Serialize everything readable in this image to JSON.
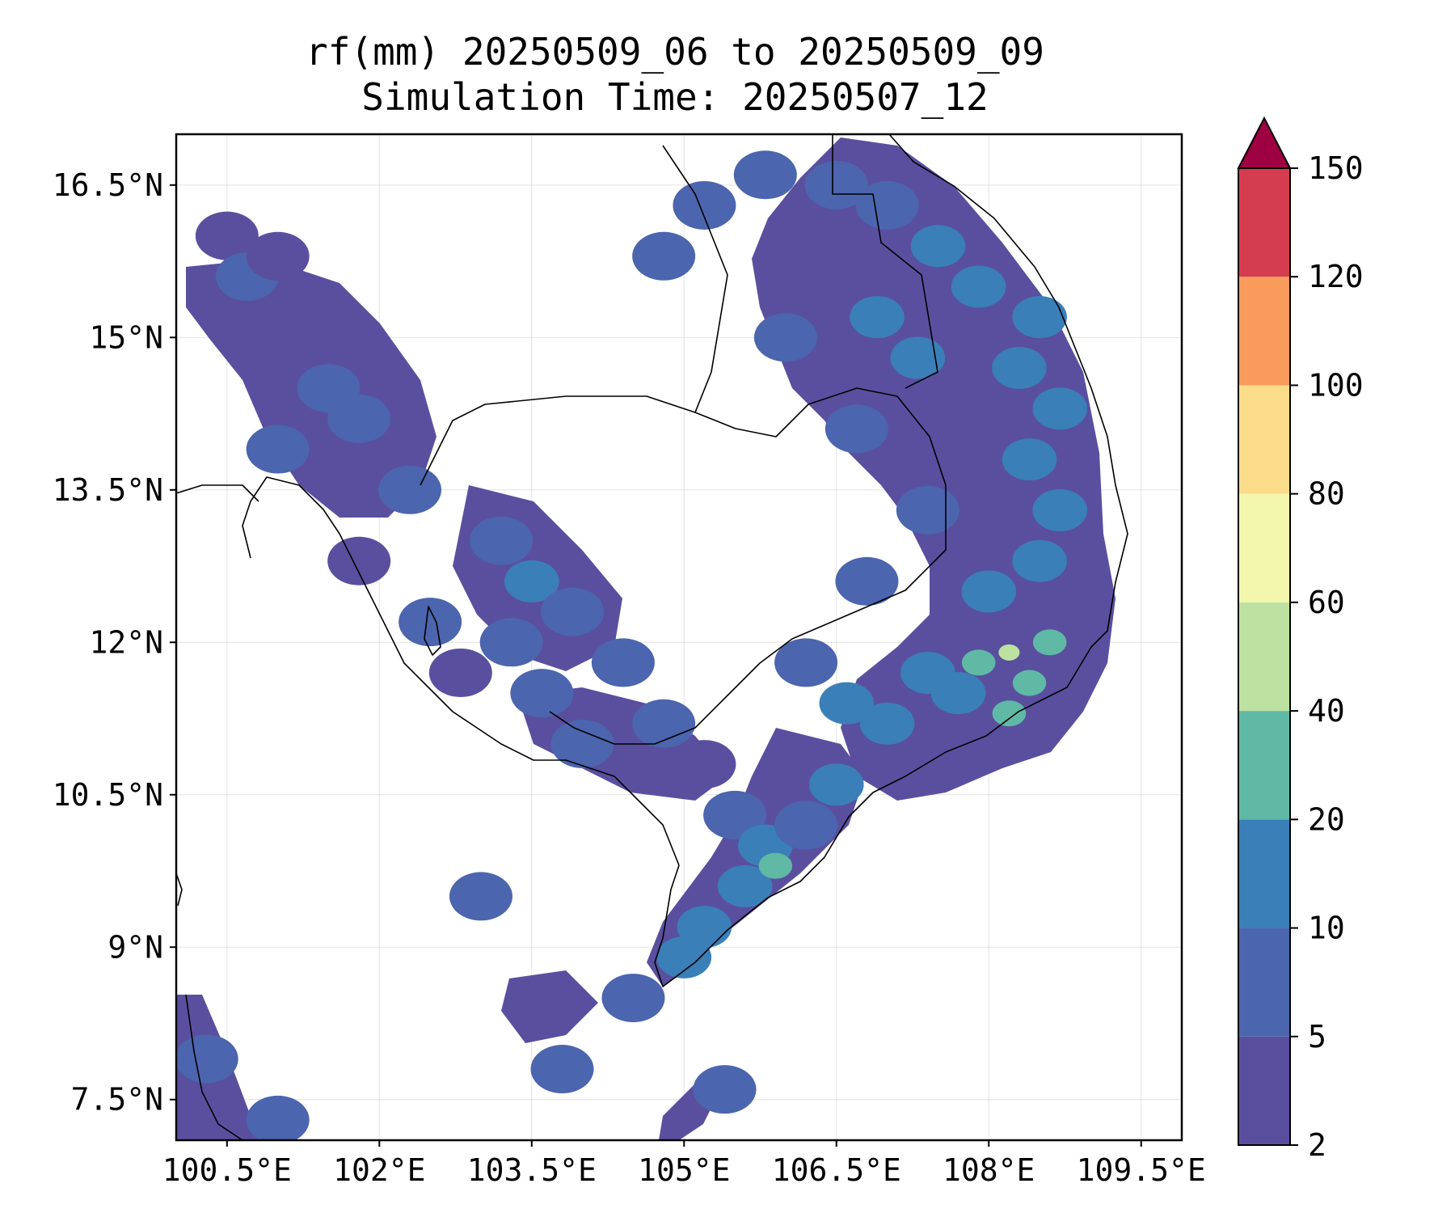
{
  "title": {
    "line1": "rf(mm) 20250509_06 to 20250509_09",
    "line2": "Simulation Time: 20250507_12"
  },
  "map": {
    "lon_range": [
      100.0,
      109.9
    ],
    "lat_range": [
      7.1,
      17.0
    ],
    "x_ticks": [
      {
        "value": 100.5,
        "label": "100.5°E"
      },
      {
        "value": 102.0,
        "label": "102°E"
      },
      {
        "value": 103.5,
        "label": "103.5°E"
      },
      {
        "value": 105.0,
        "label": "105°E"
      },
      {
        "value": 106.5,
        "label": "106.5°E"
      },
      {
        "value": 108.0,
        "label": "108°E"
      },
      {
        "value": 109.5,
        "label": "109.5°E"
      }
    ],
    "y_ticks": [
      {
        "value": 16.5,
        "label": "16.5°N"
      },
      {
        "value": 15.0,
        "label": "15°N"
      },
      {
        "value": 13.5,
        "label": "13.5°N"
      },
      {
        "value": 12.0,
        "label": "12°N"
      },
      {
        "value": 10.5,
        "label": "10.5°N"
      },
      {
        "value": 9.0,
        "label": "9°N"
      },
      {
        "value": 7.5,
        "label": "7.5°N"
      }
    ],
    "gridlines": true
  },
  "colorbar": {
    "levels": [
      2,
      5,
      10,
      20,
      40,
      60,
      80,
      100,
      120,
      150
    ],
    "labels": [
      "2",
      "5",
      "10",
      "20",
      "40",
      "60",
      "80",
      "100",
      "120",
      "150"
    ],
    "colors": [
      "#5a4f9f",
      "#4b65ae",
      "#3a7fb8",
      "#5fb9a5",
      "#bde1a0",
      "#f2f7ad",
      "#fbdc8a",
      "#f99b5a",
      "#d43d4f"
    ],
    "extend_color": "#9e0142",
    "extend": "max"
  },
  "chart_data": {
    "type": "heatmap",
    "variable": "rf(mm)",
    "x_unit": "°E",
    "y_unit": "°N",
    "cells": [
      [
        100.5,
        16.0,
        2
      ],
      [
        100.7,
        15.6,
        5
      ],
      [
        101.0,
        15.8,
        2
      ],
      [
        101.5,
        14.5,
        5
      ],
      [
        101.0,
        13.9,
        5
      ],
      [
        101.8,
        14.2,
        5
      ],
      [
        102.3,
        13.5,
        5
      ],
      [
        101.8,
        12.8,
        2
      ],
      [
        102.5,
        12.2,
        5
      ],
      [
        102.8,
        11.7,
        2
      ],
      [
        103.2,
        13.0,
        5
      ],
      [
        103.5,
        12.6,
        10
      ],
      [
        103.9,
        12.3,
        5
      ],
      [
        103.3,
        12.0,
        5
      ],
      [
        103.6,
        11.5,
        5
      ],
      [
        104.0,
        11.0,
        5
      ],
      [
        104.4,
        11.8,
        5
      ],
      [
        104.8,
        11.2,
        5
      ],
      [
        105.2,
        10.8,
        2
      ],
      [
        105.5,
        10.3,
        5
      ],
      [
        105.8,
        10.0,
        10
      ],
      [
        105.6,
        9.6,
        10
      ],
      [
        105.2,
        9.2,
        10
      ],
      [
        105.0,
        8.9,
        10
      ],
      [
        105.9,
        9.8,
        20
      ],
      [
        106.2,
        10.2,
        5
      ],
      [
        106.5,
        10.6,
        10
      ],
      [
        106.6,
        11.4,
        10
      ],
      [
        107.0,
        11.2,
        10
      ],
      [
        107.4,
        11.7,
        10
      ],
      [
        107.7,
        11.5,
        10
      ],
      [
        107.9,
        11.8,
        20
      ],
      [
        108.2,
        11.9,
        40
      ],
      [
        108.4,
        11.6,
        20
      ],
      [
        108.6,
        12.0,
        20
      ],
      [
        108.2,
        11.3,
        20
      ],
      [
        108.0,
        12.5,
        10
      ],
      [
        108.5,
        12.8,
        10
      ],
      [
        108.7,
        13.3,
        10
      ],
      [
        108.4,
        13.8,
        10
      ],
      [
        108.7,
        14.3,
        10
      ],
      [
        108.3,
        14.7,
        10
      ],
      [
        108.5,
        15.2,
        10
      ],
      [
        107.9,
        15.5,
        10
      ],
      [
        107.5,
        15.9,
        10
      ],
      [
        107.0,
        16.3,
        5
      ],
      [
        106.5,
        16.5,
        5
      ],
      [
        105.8,
        16.6,
        5
      ],
      [
        105.2,
        16.3,
        5
      ],
      [
        104.8,
        15.8,
        5
      ],
      [
        106.0,
        15.0,
        5
      ],
      [
        106.9,
        15.2,
        10
      ],
      [
        107.3,
        14.8,
        10
      ],
      [
        106.7,
        14.1,
        5
      ],
      [
        107.4,
        13.3,
        5
      ],
      [
        106.8,
        12.6,
        5
      ],
      [
        106.2,
        11.8,
        5
      ],
      [
        103.0,
        9.5,
        5
      ],
      [
        104.5,
        8.5,
        5
      ],
      [
        103.8,
        7.8,
        5
      ],
      [
        105.4,
        7.6,
        5
      ],
      [
        100.3,
        7.9,
        5
      ],
      [
        101.0,
        7.3,
        5
      ]
    ]
  }
}
